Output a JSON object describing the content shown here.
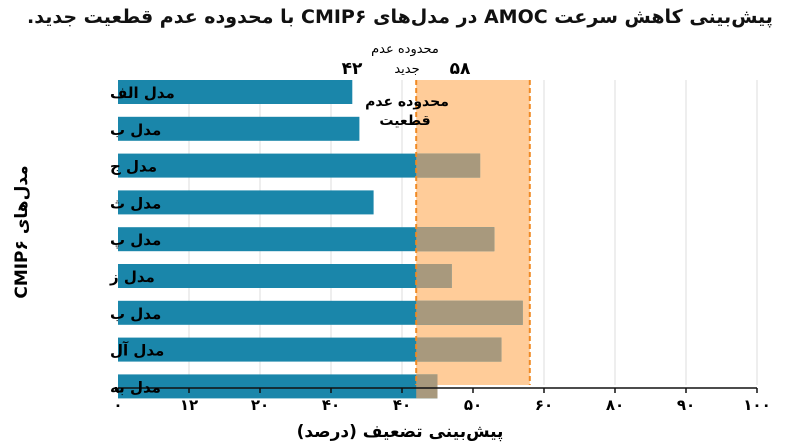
{
  "chart_data": {
    "type": "bar",
    "orientation": "horizontal",
    "title": "پیش‌بینی کاهش سرعت AMOC در مدل‌های CMIP۶ با محدوده عدم قطعیت جدید.",
    "xlabel": "پیش‌بینی تضعیف (درصد)",
    "ylabel": "مدل‌های CMIP۶",
    "categories": [
      "مدل الف",
      "مدل ب",
      "مدل ج",
      "مدل ث",
      "مدل پ",
      "مدل ز",
      "مدل ب",
      "مدل آل",
      "مدل به"
    ],
    "values": [
      33,
      34,
      51,
      36,
      53,
      47,
      57,
      54,
      45
    ],
    "xlim": [
      0,
      90
    ],
    "tick_labels": [
      "۰",
      "۱۲",
      "۲۰",
      "۴۰",
      "۴۰",
      "۵۰",
      "۶۰",
      "۸۰",
      "۹۰",
      "۱۰۰"
    ],
    "grid": "vertical",
    "uncertainty_band": {
      "lower": 42,
      "upper": 58,
      "lower_label": "۴۲",
      "upper_label": "۵۸",
      "top_label_line1": "محدوده عدم",
      "top_label_line2": "جدید",
      "inner_label_line1": "محدوده عدم",
      "inner_label_line2": "قطعیت"
    },
    "colors": {
      "bar": "#1a86aa",
      "band_fill": "#ffcc99",
      "band_line": "#f08a24",
      "overlap": "#b09a7a"
    }
  }
}
